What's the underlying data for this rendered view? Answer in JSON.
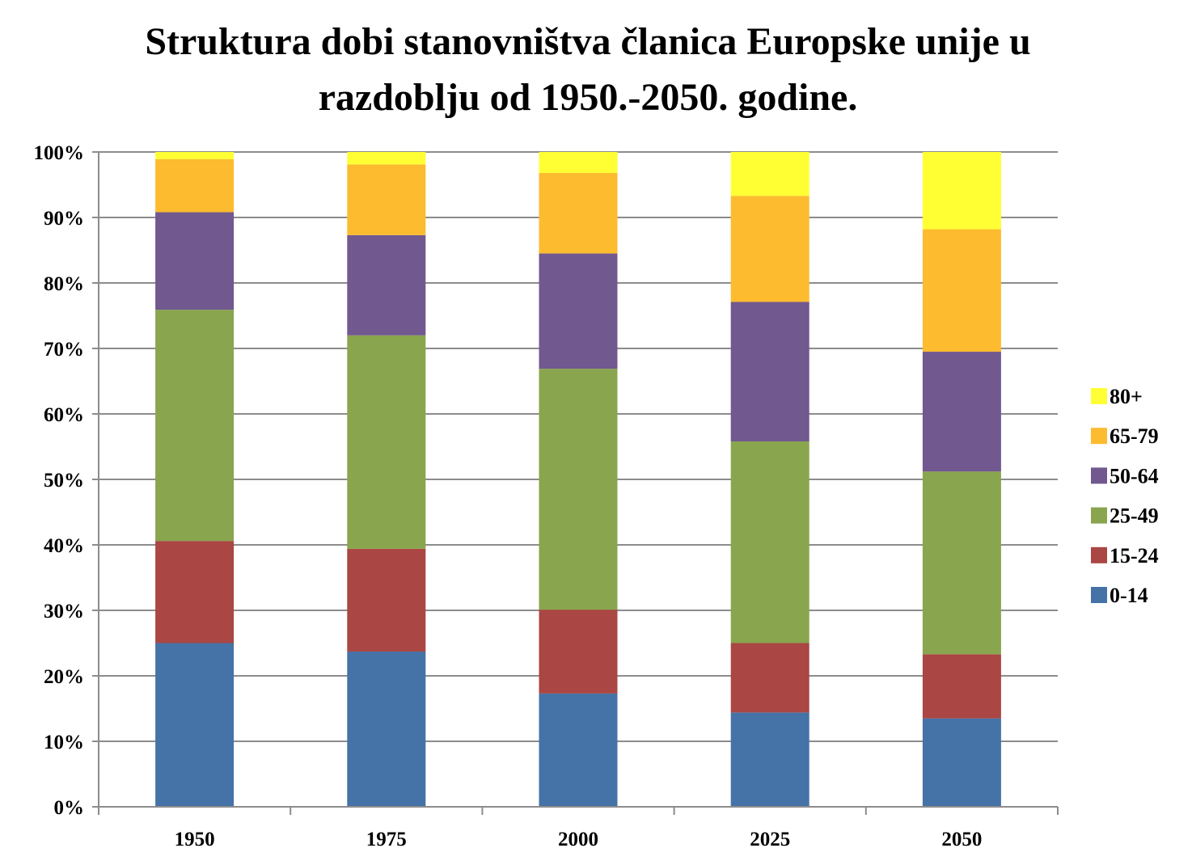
{
  "chart_data": {
    "type": "bar",
    "stacked": true,
    "title_lines": [
      "Struktura dobi stanovništva članica Europske unije u",
      "razdoblju od 1950.-2050. godine."
    ],
    "xlabel": "",
    "ylabel": "",
    "categories": [
      "1950",
      "1975",
      "2000",
      "2025",
      "2050"
    ],
    "ylim": [
      0,
      100
    ],
    "yticks": [
      0,
      10,
      20,
      30,
      40,
      50,
      60,
      70,
      80,
      90,
      100
    ],
    "ytick_labels": [
      "0%",
      "10%",
      "20%",
      "30%",
      "40%",
      "50%",
      "60%",
      "70%",
      "80%",
      "90%",
      "100%"
    ],
    "grid": true,
    "legend_position": "right",
    "series": [
      {
        "name": "0-14",
        "color": "#4572A7",
        "values": [
          25.0,
          23.7,
          17.3,
          14.4,
          13.5
        ]
      },
      {
        "name": "15-24",
        "color": "#AA4643",
        "values": [
          15.6,
          15.7,
          12.8,
          10.6,
          9.8
        ]
      },
      {
        "name": "25-49",
        "color": "#89A54E",
        "values": [
          35.3,
          32.6,
          36.8,
          30.8,
          27.9
        ]
      },
      {
        "name": "50-64",
        "color": "#71588F",
        "values": [
          14.9,
          15.3,
          17.6,
          21.3,
          18.3
        ]
      },
      {
        "name": "65-79",
        "color": "#FDBB2F",
        "values": [
          8.1,
          10.8,
          12.3,
          16.2,
          18.7
        ]
      },
      {
        "name": "80+",
        "color": "#FFFF33",
        "values": [
          1.1,
          1.9,
          3.2,
          6.7,
          11.8
        ]
      }
    ]
  }
}
